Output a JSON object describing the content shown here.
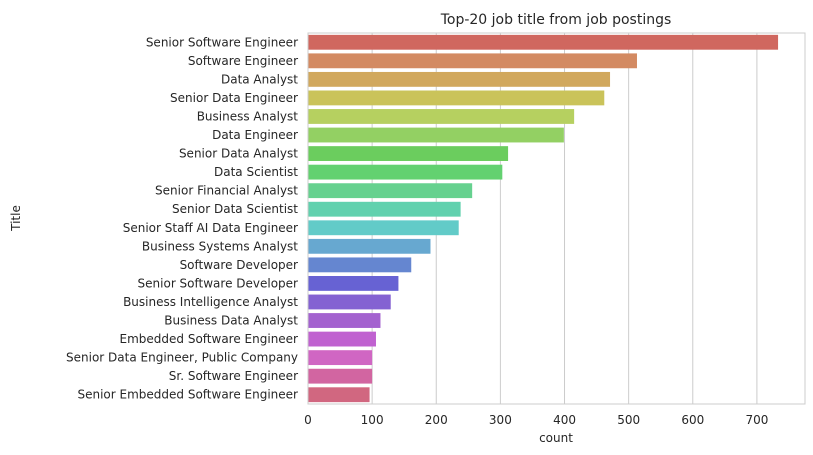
{
  "chart_data": {
    "type": "bar",
    "orientation": "horizontal",
    "title": "Top-20 job title from job postings",
    "xlabel": "count",
    "ylabel": "Title",
    "xlim": [
      0,
      775
    ],
    "xticks": [
      0,
      100,
      200,
      300,
      400,
      500,
      600,
      700
    ],
    "grid": "x",
    "categories": [
      "Senior Software Engineer",
      "Software Engineer",
      "Data Analyst",
      "Senior Data Engineer",
      "Business Analyst",
      "Data Engineer",
      "Senior Data Analyst",
      "Data Scientist",
      "Senior Financial Analyst",
      "Senior Data Scientist",
      "Senior Staff AI Data Engineer",
      "Business Systems Analyst",
      "Software Developer",
      "Senior Software Developer",
      "Business Intelligence Analyst",
      "Business Data Analyst",
      "Embedded Software Engineer",
      "Senior Data Engineer, Public Company",
      "Sr. Software Engineer",
      "Senior Embedded Software Engineer"
    ],
    "values": [
      733,
      513,
      471,
      462,
      415,
      399,
      312,
      303,
      256,
      238,
      235,
      191,
      161,
      141,
      129,
      113,
      106,
      100,
      100,
      96
    ],
    "colors": [
      "#d0675f",
      "#d38a62",
      "#d1a85d",
      "#cac35a",
      "#b6d060",
      "#93d063",
      "#6bcd5e",
      "#63d170",
      "#66d18f",
      "#61d1ae",
      "#62cbc8",
      "#67a8d0",
      "#6586d0",
      "#6762d3",
      "#8462d2",
      "#a362cf",
      "#c062d0",
      "#d066c3",
      "#d265a1",
      "#d16780"
    ]
  }
}
